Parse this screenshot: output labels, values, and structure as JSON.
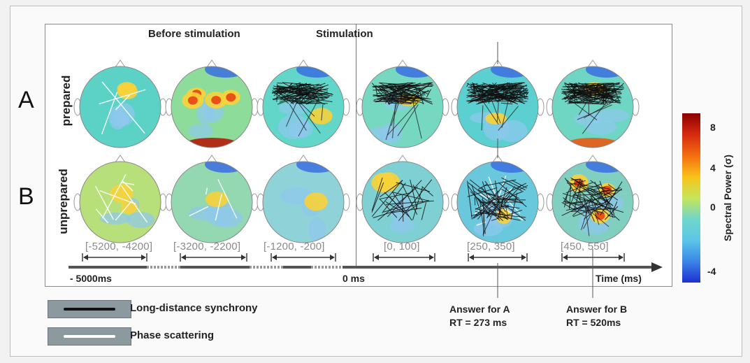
{
  "headers": {
    "before": "Before stimulation",
    "stimulation": "Stimulation"
  },
  "rows": [
    {
      "letter": "A",
      "label": "prepared"
    },
    {
      "letter": "B",
      "label": "unprepared"
    }
  ],
  "windows": [
    "[-5200, -4200]",
    "[-3200, -2200]",
    "[-1200, -200]",
    "[0, 100]",
    "[250, 350]",
    "[450, 550]"
  ],
  "axis": {
    "start_label": "- 5000ms",
    "zero_label": "0 ms",
    "end_label": "Time (ms)"
  },
  "legend": [
    {
      "label": "Long-distance synchrony",
      "color": "#111111"
    },
    {
      "label": "Phase scattering",
      "color": "#ffffff"
    }
  ],
  "answers": [
    {
      "line1": "Answer for A",
      "line2": "RT = 273 ms"
    },
    {
      "line1": "Answer for B",
      "line2": "RT = 520ms"
    }
  ],
  "colorbar": {
    "title": "Spectral Power (σ)",
    "ticks": [
      "8",
      "4",
      "0",
      "-4"
    ],
    "colors": [
      "#8b0000",
      "#d62a10",
      "#f46d0f",
      "#f9c21a",
      "#c6e55a",
      "#6fd7c9",
      "#5cc6e8",
      "#3a86e6",
      "#1f2fd0"
    ]
  },
  "heads": [
    {
      "base": "#5cd2c7",
      "hot": 1,
      "lines": 0,
      "white": 1
    },
    {
      "base": "#8edc9a",
      "hot": 3,
      "lines": 0,
      "white": 0
    },
    {
      "base": "#62d6c8",
      "hot": 0,
      "lines": 3,
      "white": 0
    },
    {
      "base": "#76d8c0",
      "hot": 0,
      "lines": 3,
      "white": 0
    },
    {
      "base": "#5ccfd0",
      "hot": 0,
      "lines": 4,
      "white": 0
    },
    {
      "base": "#6fd6c3",
      "hot": 0,
      "lines": 4,
      "white": 0
    },
    {
      "base": "#b8e07a",
      "hot": 1,
      "lines": 0,
      "white": 2
    },
    {
      "base": "#93d8b0",
      "hot": 0,
      "lines": 0,
      "white": 1
    },
    {
      "base": "#8fd3d8",
      "hot": 0,
      "lines": 0,
      "white": 0
    },
    {
      "base": "#7fd0d2",
      "hot": 1,
      "lines": 1,
      "white": 0
    },
    {
      "base": "#6ac8dc",
      "hot": 0,
      "lines": 2,
      "white": 2
    },
    {
      "base": "#80cfc0",
      "hot": 2,
      "lines": 2,
      "white": 0
    }
  ]
}
